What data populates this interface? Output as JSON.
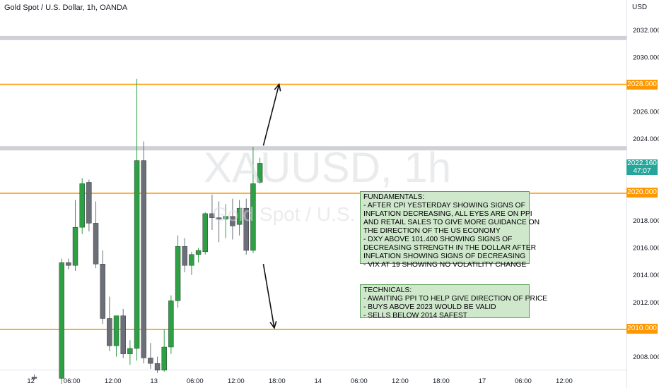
{
  "header": {
    "symbol_title": "Gold Spot / U.S. Dollar, 1h, OANDA",
    "currency": "USD"
  },
  "watermark": {
    "symbol": "XAUUSD, 1h",
    "subtitle": "Gold Spot / U.S. Dollar"
  },
  "price_scale": {
    "ticks": [
      {
        "value": 2032,
        "label": "2032.000"
      },
      {
        "value": 2030,
        "label": "2030.000"
      },
      {
        "value": 2026,
        "label": "2026.000"
      },
      {
        "value": 2024,
        "label": "2024.000"
      },
      {
        "value": 2018,
        "label": "2018.000"
      },
      {
        "value": 2016,
        "label": "2016.000"
      },
      {
        "value": 2014,
        "label": "2014.000"
      },
      {
        "value": 2012,
        "label": "2012.000"
      },
      {
        "value": 2008,
        "label": "2008.000"
      }
    ],
    "level_tags": [
      {
        "value": 2028,
        "label": "2028.000"
      },
      {
        "value": 2020,
        "label": "2020.000"
      },
      {
        "value": 2010,
        "label": "2010.000"
      }
    ],
    "live_price": {
      "value": 2022.16,
      "label": "2022.160",
      "countdown": "47:07"
    }
  },
  "time_axis": {
    "labels": [
      "12",
      "06:00",
      "12:00",
      "13",
      "06:00",
      "12:00",
      "18:00",
      "14",
      "06:00",
      "12:00",
      "18:00",
      "17",
      "06:00",
      "12:00"
    ],
    "label_slots": [
      -0.5,
      5.5,
      11.5,
      17.5,
      23.5,
      29.5,
      35.5,
      41.5,
      47.5,
      53.5,
      59.5,
      65.5,
      71.5,
      77.5
    ]
  },
  "colors": {
    "bull": "#2ea043",
    "bear": "#6d6f78",
    "level_line": "#ff9800",
    "zone": "#cfd1d6",
    "note_bg": "#cfe8cc"
  },
  "notes": {
    "fundamentals": [
      "FUNDAMENTALS:",
      "- AFTER CPI YESTERDAY SHOWING SIGNS OF",
      "INFLATION DECREASING, ALL EYES ARE ON PPI",
      "AND RETAIL SALES TO GIVE MORE GUIDANCE ON",
      "THE DIRECTION OF THE US ECONOMY",
      "- DXY ABOVE 101.400 SHOWING SIGNS OF",
      "DECREASING STRENGTH IN THE DOLLAR AFTER",
      "INFLATION SHOWING SIGNS OF DECREASING",
      "- VIX AT 19 SHOWING NO VOLATILITY CHANGE"
    ],
    "technicals": [
      "TECHNICALS:",
      "- AWAITING PPI TO HELP GIVE DIRECTION OF PRICE",
      "- BUYS ABOVE 2023 WOULD BE VALID",
      "- SELLS BELOW 2014 SAFEST"
    ]
  },
  "chart_data": {
    "type": "candlestick",
    "ylim": [
      2006.5,
      2033.7
    ],
    "levels": [
      2028,
      2020,
      2010
    ],
    "zones": [
      2031.4,
      2023.3
    ],
    "projections": [
      {
        "direction": "up",
        "from_slot": 33.5,
        "from_price": 2023.5,
        "to_slot": 35.8,
        "to_price": 2028.0
      },
      {
        "direction": "down",
        "from_slot": 33.5,
        "from_price": 2014.8,
        "to_slot": 35.1,
        "to_price": 2010.1
      }
    ],
    "candles": [
      {
        "i": 0,
        "o": 2006.5,
        "h": 2006.7,
        "l": 2006.3,
        "c": 2006.4
      },
      {
        "i": 4,
        "o": 2006.4,
        "h": 2015.2,
        "l": 2006.0,
        "c": 2014.9
      },
      {
        "i": 5,
        "o": 2014.9,
        "h": 2015.2,
        "l": 2014.4,
        "c": 2014.7
      },
      {
        "i": 6,
        "o": 2014.7,
        "h": 2019.5,
        "l": 2014.3,
        "c": 2017.5
      },
      {
        "i": 7,
        "o": 2017.5,
        "h": 2021.1,
        "l": 2017.0,
        "c": 2020.7
      },
      {
        "i": 8,
        "o": 2020.8,
        "h": 2021.0,
        "l": 2017.2,
        "c": 2017.8
      },
      {
        "i": 9,
        "o": 2017.8,
        "h": 2019.4,
        "l": 2014.5,
        "c": 2014.8
      },
      {
        "i": 10,
        "o": 2014.8,
        "h": 2015.8,
        "l": 2010.4,
        "c": 2010.8
      },
      {
        "i": 11,
        "o": 2010.8,
        "h": 2012.4,
        "l": 2008.4,
        "c": 2008.8
      },
      {
        "i": 12,
        "o": 2008.8,
        "h": 2011.0,
        "l": 2008.0,
        "c": 2011.0
      },
      {
        "i": 13,
        "o": 2011.0,
        "h": 2011.5,
        "l": 2007.9,
        "c": 2008.2
      },
      {
        "i": 14,
        "o": 2008.2,
        "h": 2009.2,
        "l": 2007.4,
        "c": 2008.6
      },
      {
        "i": 15,
        "o": 2008.6,
        "h": 2028.4,
        "l": 2007.7,
        "c": 2022.4
      },
      {
        "i": 16,
        "o": 2022.4,
        "h": 2023.8,
        "l": 2007.5,
        "c": 2007.9
      },
      {
        "i": 17,
        "o": 2007.9,
        "h": 2009.0,
        "l": 2007.1,
        "c": 2007.5
      },
      {
        "i": 18,
        "o": 2007.5,
        "h": 2008.0,
        "l": 2006.8,
        "c": 2007.0
      },
      {
        "i": 19,
        "o": 2007.0,
        "h": 2010.0,
        "l": 2006.9,
        "c": 2008.7
      },
      {
        "i": 20,
        "o": 2008.7,
        "h": 2012.5,
        "l": 2008.2,
        "c": 2012.1
      },
      {
        "i": 21,
        "o": 2012.1,
        "h": 2016.9,
        "l": 2011.6,
        "c": 2016.1
      },
      {
        "i": 22,
        "o": 2016.1,
        "h": 2016.7,
        "l": 2014.2,
        "c": 2014.7
      },
      {
        "i": 23,
        "o": 2014.7,
        "h": 2015.7,
        "l": 2014.0,
        "c": 2015.5
      },
      {
        "i": 24,
        "o": 2015.5,
        "h": 2016.0,
        "l": 2014.9,
        "c": 2015.8
      },
      {
        "i": 25,
        "o": 2015.7,
        "h": 2018.6,
        "l": 2015.5,
        "c": 2018.5
      },
      {
        "i": 26,
        "o": 2018.5,
        "h": 2019.9,
        "l": 2017.3,
        "c": 2018.2
      },
      {
        "i": 27,
        "o": 2018.2,
        "h": 2019.4,
        "l": 2016.4,
        "c": 2018.1
      },
      {
        "i": 28,
        "o": 2018.1,
        "h": 2019.2,
        "l": 2016.7,
        "c": 2018.3
      },
      {
        "i": 29,
        "o": 2018.3,
        "h": 2019.6,
        "l": 2016.6,
        "c": 2017.6
      },
      {
        "i": 30,
        "o": 2017.7,
        "h": 2019.5,
        "l": 2016.9,
        "c": 2018.9
      },
      {
        "i": 31,
        "o": 2018.9,
        "h": 2019.6,
        "l": 2015.5,
        "c": 2015.8
      },
      {
        "i": 32,
        "o": 2015.8,
        "h": 2023.4,
        "l": 2015.6,
        "c": 2020.7
      },
      {
        "i": 33,
        "o": 2020.8,
        "h": 2022.6,
        "l": 2020.7,
        "c": 2022.2
      }
    ]
  }
}
